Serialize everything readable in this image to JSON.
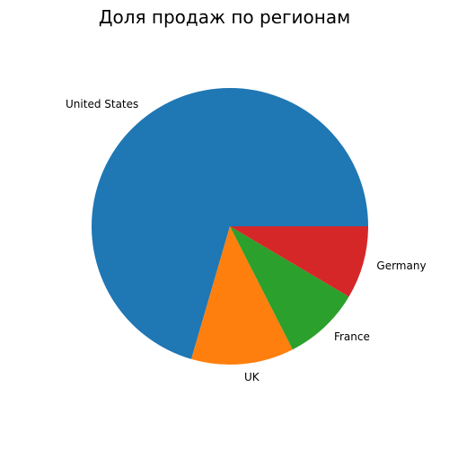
{
  "chart_data": {
    "type": "pie",
    "title": "Доля продаж по регионам",
    "start_angle_deg": 0,
    "direction": "counterclockwise",
    "slices": [
      {
        "label": "United States",
        "value": 70.5,
        "color": "#1f77b4"
      },
      {
        "label": "UK",
        "value": 12.0,
        "color": "#ff7f0e"
      },
      {
        "label": "France",
        "value": 9.0,
        "color": "#2ca02c"
      },
      {
        "label": "Germany",
        "value": 8.5,
        "color": "#d62728"
      }
    ]
  }
}
